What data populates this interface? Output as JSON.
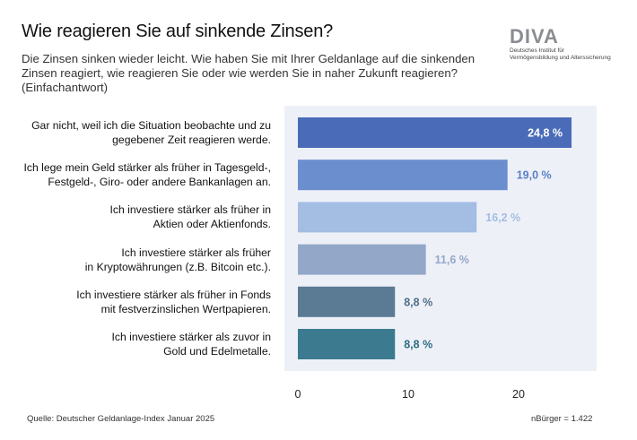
{
  "header": {
    "title": "Wie reagieren Sie auf sinkende Zinsen?",
    "subtitle_lines": [
      "Die Zinsen sinken wieder leicht. Wie haben Sie mit Ihrer Geldanlage auf die sinkenden",
      "Zinsen reagiert, wie reagieren Sie oder wie werden Sie in naher Zukunft reagieren?",
      "(Einfachantwort)"
    ]
  },
  "logo": {
    "word": "DIVA",
    "line1": "Deutsches Institut für",
    "line2": "Vermögensbildung und Alterssicherung"
  },
  "chart_data": {
    "type": "bar",
    "orientation": "horizontal",
    "categories": [
      [
        "Gar nicht, weil ich die Situation beobachte und zu",
        "gegebener Zeit reagieren werde."
      ],
      [
        "Ich lege mein Geld stärker als früher in Tagesgeld-,",
        "Festgeld-, Giro- oder andere Bankanlagen an."
      ],
      [
        "Ich investiere stärker als früher in",
        "Aktien oder Aktienfonds."
      ],
      [
        "Ich investiere stärker als früher",
        "in Kryptowährungen (z.B. Bitcoin etc.)."
      ],
      [
        "Ich investiere stärker als früher in Fonds",
        "mit festverzinslichen Wertpapieren."
      ],
      [
        "Ich investiere stärker als zuvor in",
        "Gold und Edelmetalle."
      ]
    ],
    "values": [
      24.8,
      19.0,
      16.2,
      11.6,
      8.8,
      8.8
    ],
    "value_labels": [
      "24,8 %",
      "19,0 %",
      "16,2 %",
      "11,6 %",
      "8,8 %",
      "8,8 %"
    ],
    "bar_colors": [
      "#4a6cb8",
      "#6b8fce",
      "#a3bde3",
      "#93a8c8",
      "#5b7a94",
      "#3b7a8f"
    ],
    "label_colors": [
      "#ffffff",
      "#5a7fc2",
      "#a3bde3",
      "#93a8c8",
      "#4f6e86",
      "#2f6d82"
    ],
    "label_inside": [
      true,
      false,
      false,
      false,
      false,
      false
    ],
    "xticks": [
      0,
      10,
      20
    ],
    "xlim": [
      0,
      27
    ],
    "plot_background": "#eef0f8",
    "grid": false
  },
  "footer": {
    "source": "Quelle: Deutscher Geldanlage-Index Januar 2025",
    "n": "nBürger = 1.422"
  }
}
